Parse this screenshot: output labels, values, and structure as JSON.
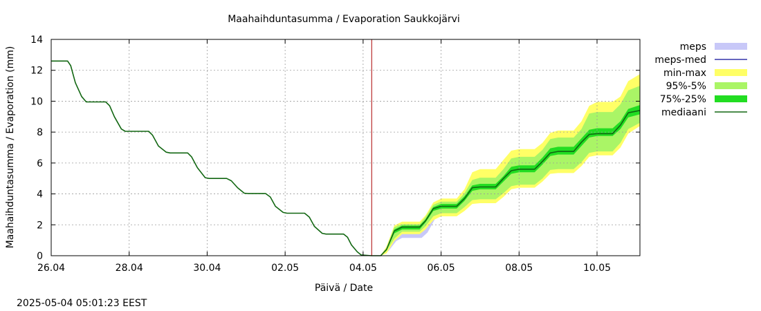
{
  "chart_data": {
    "type": "area",
    "title": "Maahaihduntasumma / Evaporation   Saukkojärvi",
    "xlabel": "Päivä / Date",
    "ylabel": "Maahaihduntasumma / Evaporation (mm)",
    "timestamp": "2025-05-04 05:01:23 EEST",
    "xlim": [
      0,
      15.1
    ],
    "ylim": [
      0,
      14
    ],
    "x_ticks": [
      {
        "x": 0,
        "label": "26.04"
      },
      {
        "x": 2,
        "label": "28.04"
      },
      {
        "x": 4,
        "label": "30.04"
      },
      {
        "x": 6,
        "label": "02.05"
      },
      {
        "x": 8,
        "label": "04.05"
      },
      {
        "x": 10,
        "label": "06.05"
      },
      {
        "x": 12,
        "label": "08.05"
      },
      {
        "x": 14,
        "label": "10.05"
      }
    ],
    "y_ticks": [
      0,
      2,
      4,
      6,
      8,
      10,
      12,
      14
    ],
    "grid": true,
    "forecast_start_x": 8.22,
    "legend": [
      {
        "label": "meps",
        "kind": "band",
        "color": "#c8c8f8"
      },
      {
        "label": "meps-med",
        "kind": "line",
        "color": "#3333aa"
      },
      {
        "label": "min-max",
        "kind": "band",
        "color": "#ffff66"
      },
      {
        "label": "95%-5%",
        "kind": "band",
        "color": "#aaf566"
      },
      {
        "label": "75%-25%",
        "kind": "band",
        "color": "#22dd22"
      },
      {
        "label": "mediaani",
        "kind": "line",
        "color": "#116611"
      }
    ],
    "series": [
      {
        "name": "observed",
        "color": "#116611",
        "x": [
          0,
          0.42,
          0.5,
          0.62,
          0.78,
          0.9,
          1.4,
          1.5,
          1.62,
          1.8,
          1.9,
          2.5,
          2.6,
          2.75,
          2.95,
          3.05,
          3.5,
          3.6,
          3.75,
          3.95,
          4.05,
          4.5,
          4.62,
          4.78,
          4.95,
          5.05,
          5.5,
          5.62,
          5.75,
          5.95,
          6.05,
          6.5,
          6.62,
          6.75,
          6.95,
          7.05,
          7.5,
          7.6,
          7.7,
          7.85,
          7.95,
          8.22
        ],
        "y": [
          12.6,
          12.6,
          12.3,
          11.2,
          10.3,
          9.95,
          9.95,
          9.7,
          9.0,
          8.2,
          8.05,
          8.05,
          7.8,
          7.1,
          6.7,
          6.65,
          6.65,
          6.4,
          5.7,
          5.05,
          5.0,
          5.0,
          4.85,
          4.4,
          4.05,
          4.02,
          4.02,
          3.8,
          3.2,
          2.8,
          2.75,
          2.75,
          2.5,
          1.9,
          1.45,
          1.4,
          1.4,
          1.2,
          0.7,
          0.25,
          0.05,
          0.0
        ]
      },
      {
        "name": "meps",
        "color": "#c8c8f8",
        "x": [
          8.22,
          8.45,
          8.65,
          8.85,
          9.0,
          9.5,
          9.65,
          9.85,
          10.0,
          10.35
        ],
        "lower": [
          0.0,
          0.0,
          0.3,
          0.95,
          1.15,
          1.15,
          1.5,
          2.4,
          2.7,
          2.8
        ],
        "upper": [
          0.0,
          0.0,
          0.8,
          1.75,
          1.9,
          1.9,
          2.3,
          3.05,
          3.2,
          3.25
        ]
      },
      {
        "name": "min-max",
        "color": "#ffff66",
        "x": [
          8.22,
          8.45,
          8.6,
          8.8,
          9.0,
          9.45,
          9.6,
          9.8,
          10.0,
          10.4,
          10.6,
          10.8,
          11.0,
          11.4,
          11.6,
          11.8,
          12.0,
          12.4,
          12.6,
          12.8,
          13.0,
          13.4,
          13.6,
          13.8,
          14.0,
          14.4,
          14.6,
          14.8,
          15.1
        ],
        "lower": [
          0.0,
          0.0,
          0.15,
          0.95,
          1.4,
          1.4,
          1.7,
          2.3,
          2.55,
          2.55,
          2.9,
          3.35,
          3.4,
          3.4,
          3.8,
          4.3,
          4.4,
          4.4,
          4.8,
          5.3,
          5.35,
          5.35,
          5.8,
          6.4,
          6.5,
          6.5,
          7.0,
          7.9,
          8.4
        ],
        "upper": [
          0.0,
          0.0,
          0.6,
          1.95,
          2.2,
          2.2,
          2.6,
          3.45,
          3.7,
          3.7,
          4.3,
          5.4,
          5.6,
          5.6,
          6.2,
          6.8,
          6.9,
          6.9,
          7.3,
          7.95,
          8.1,
          8.1,
          8.7,
          9.7,
          9.95,
          9.95,
          10.3,
          11.3,
          11.75
        ]
      },
      {
        "name": "95%-5%",
        "color": "#aaf566",
        "x": [
          8.22,
          8.45,
          8.6,
          8.8,
          9.0,
          9.45,
          9.6,
          9.8,
          10.0,
          10.4,
          10.6,
          10.8,
          11.0,
          11.4,
          11.6,
          11.8,
          12.0,
          12.4,
          12.6,
          12.8,
          13.0,
          13.4,
          13.6,
          13.8,
          14.0,
          14.4,
          14.6,
          14.8,
          15.1
        ],
        "lower": [
          0.0,
          0.0,
          0.3,
          1.1,
          1.55,
          1.55,
          1.9,
          2.55,
          2.75,
          2.75,
          3.15,
          3.6,
          3.65,
          3.65,
          4.05,
          4.5,
          4.6,
          4.6,
          5.0,
          5.55,
          5.6,
          5.6,
          6.05,
          6.65,
          6.75,
          6.75,
          7.3,
          8.2,
          8.6
        ],
        "upper": [
          0.0,
          0.0,
          0.5,
          1.85,
          2.05,
          2.05,
          2.5,
          3.3,
          3.5,
          3.5,
          4.05,
          4.9,
          5.05,
          5.05,
          5.6,
          6.3,
          6.4,
          6.4,
          6.85,
          7.55,
          7.65,
          7.65,
          8.2,
          9.2,
          9.3,
          9.3,
          9.8,
          10.7,
          11.0
        ]
      },
      {
        "name": "75%-25%",
        "color": "#22dd22",
        "x": [
          8.22,
          8.45,
          8.6,
          8.8,
          9.0,
          9.45,
          9.6,
          9.8,
          10.0,
          10.4,
          10.6,
          10.8,
          11.0,
          11.4,
          11.6,
          11.8,
          12.0,
          12.4,
          12.6,
          12.8,
          13.0,
          13.4,
          13.6,
          13.8,
          14.0,
          14.4,
          14.6,
          14.8,
          15.1
        ],
        "lower": [
          0.0,
          0.0,
          0.35,
          1.45,
          1.7,
          1.7,
          2.15,
          2.9,
          3.05,
          3.05,
          3.55,
          4.2,
          4.3,
          4.3,
          4.8,
          5.3,
          5.4,
          5.4,
          5.9,
          6.45,
          6.55,
          6.55,
          7.1,
          7.65,
          7.75,
          7.75,
          8.2,
          8.95,
          9.15
        ],
        "upper": [
          0.0,
          0.0,
          0.45,
          1.7,
          1.95,
          1.95,
          2.35,
          3.15,
          3.35,
          3.35,
          3.85,
          4.55,
          4.65,
          4.65,
          5.15,
          5.75,
          5.85,
          5.85,
          6.35,
          6.95,
          7.05,
          7.05,
          7.6,
          8.15,
          8.25,
          8.25,
          8.7,
          9.5,
          9.75
        ]
      },
      {
        "name": "mediaani",
        "color": "#116611",
        "x": [
          8.22,
          8.45,
          8.6,
          8.8,
          9.0,
          9.45,
          9.6,
          9.8,
          10.0,
          10.4,
          10.6,
          10.8,
          11.0,
          11.4,
          11.6,
          11.8,
          12.0,
          12.4,
          12.6,
          12.8,
          13.0,
          13.4,
          13.6,
          13.8,
          14.0,
          14.4,
          14.6,
          14.8,
          15.1
        ],
        "y": [
          0.0,
          0.0,
          0.4,
          1.6,
          1.85,
          1.85,
          2.25,
          3.05,
          3.2,
          3.2,
          3.7,
          4.4,
          4.45,
          4.45,
          5.0,
          5.5,
          5.6,
          5.6,
          6.1,
          6.65,
          6.75,
          6.75,
          7.35,
          7.85,
          7.9,
          7.9,
          8.45,
          9.25,
          9.4
        ]
      }
    ]
  }
}
